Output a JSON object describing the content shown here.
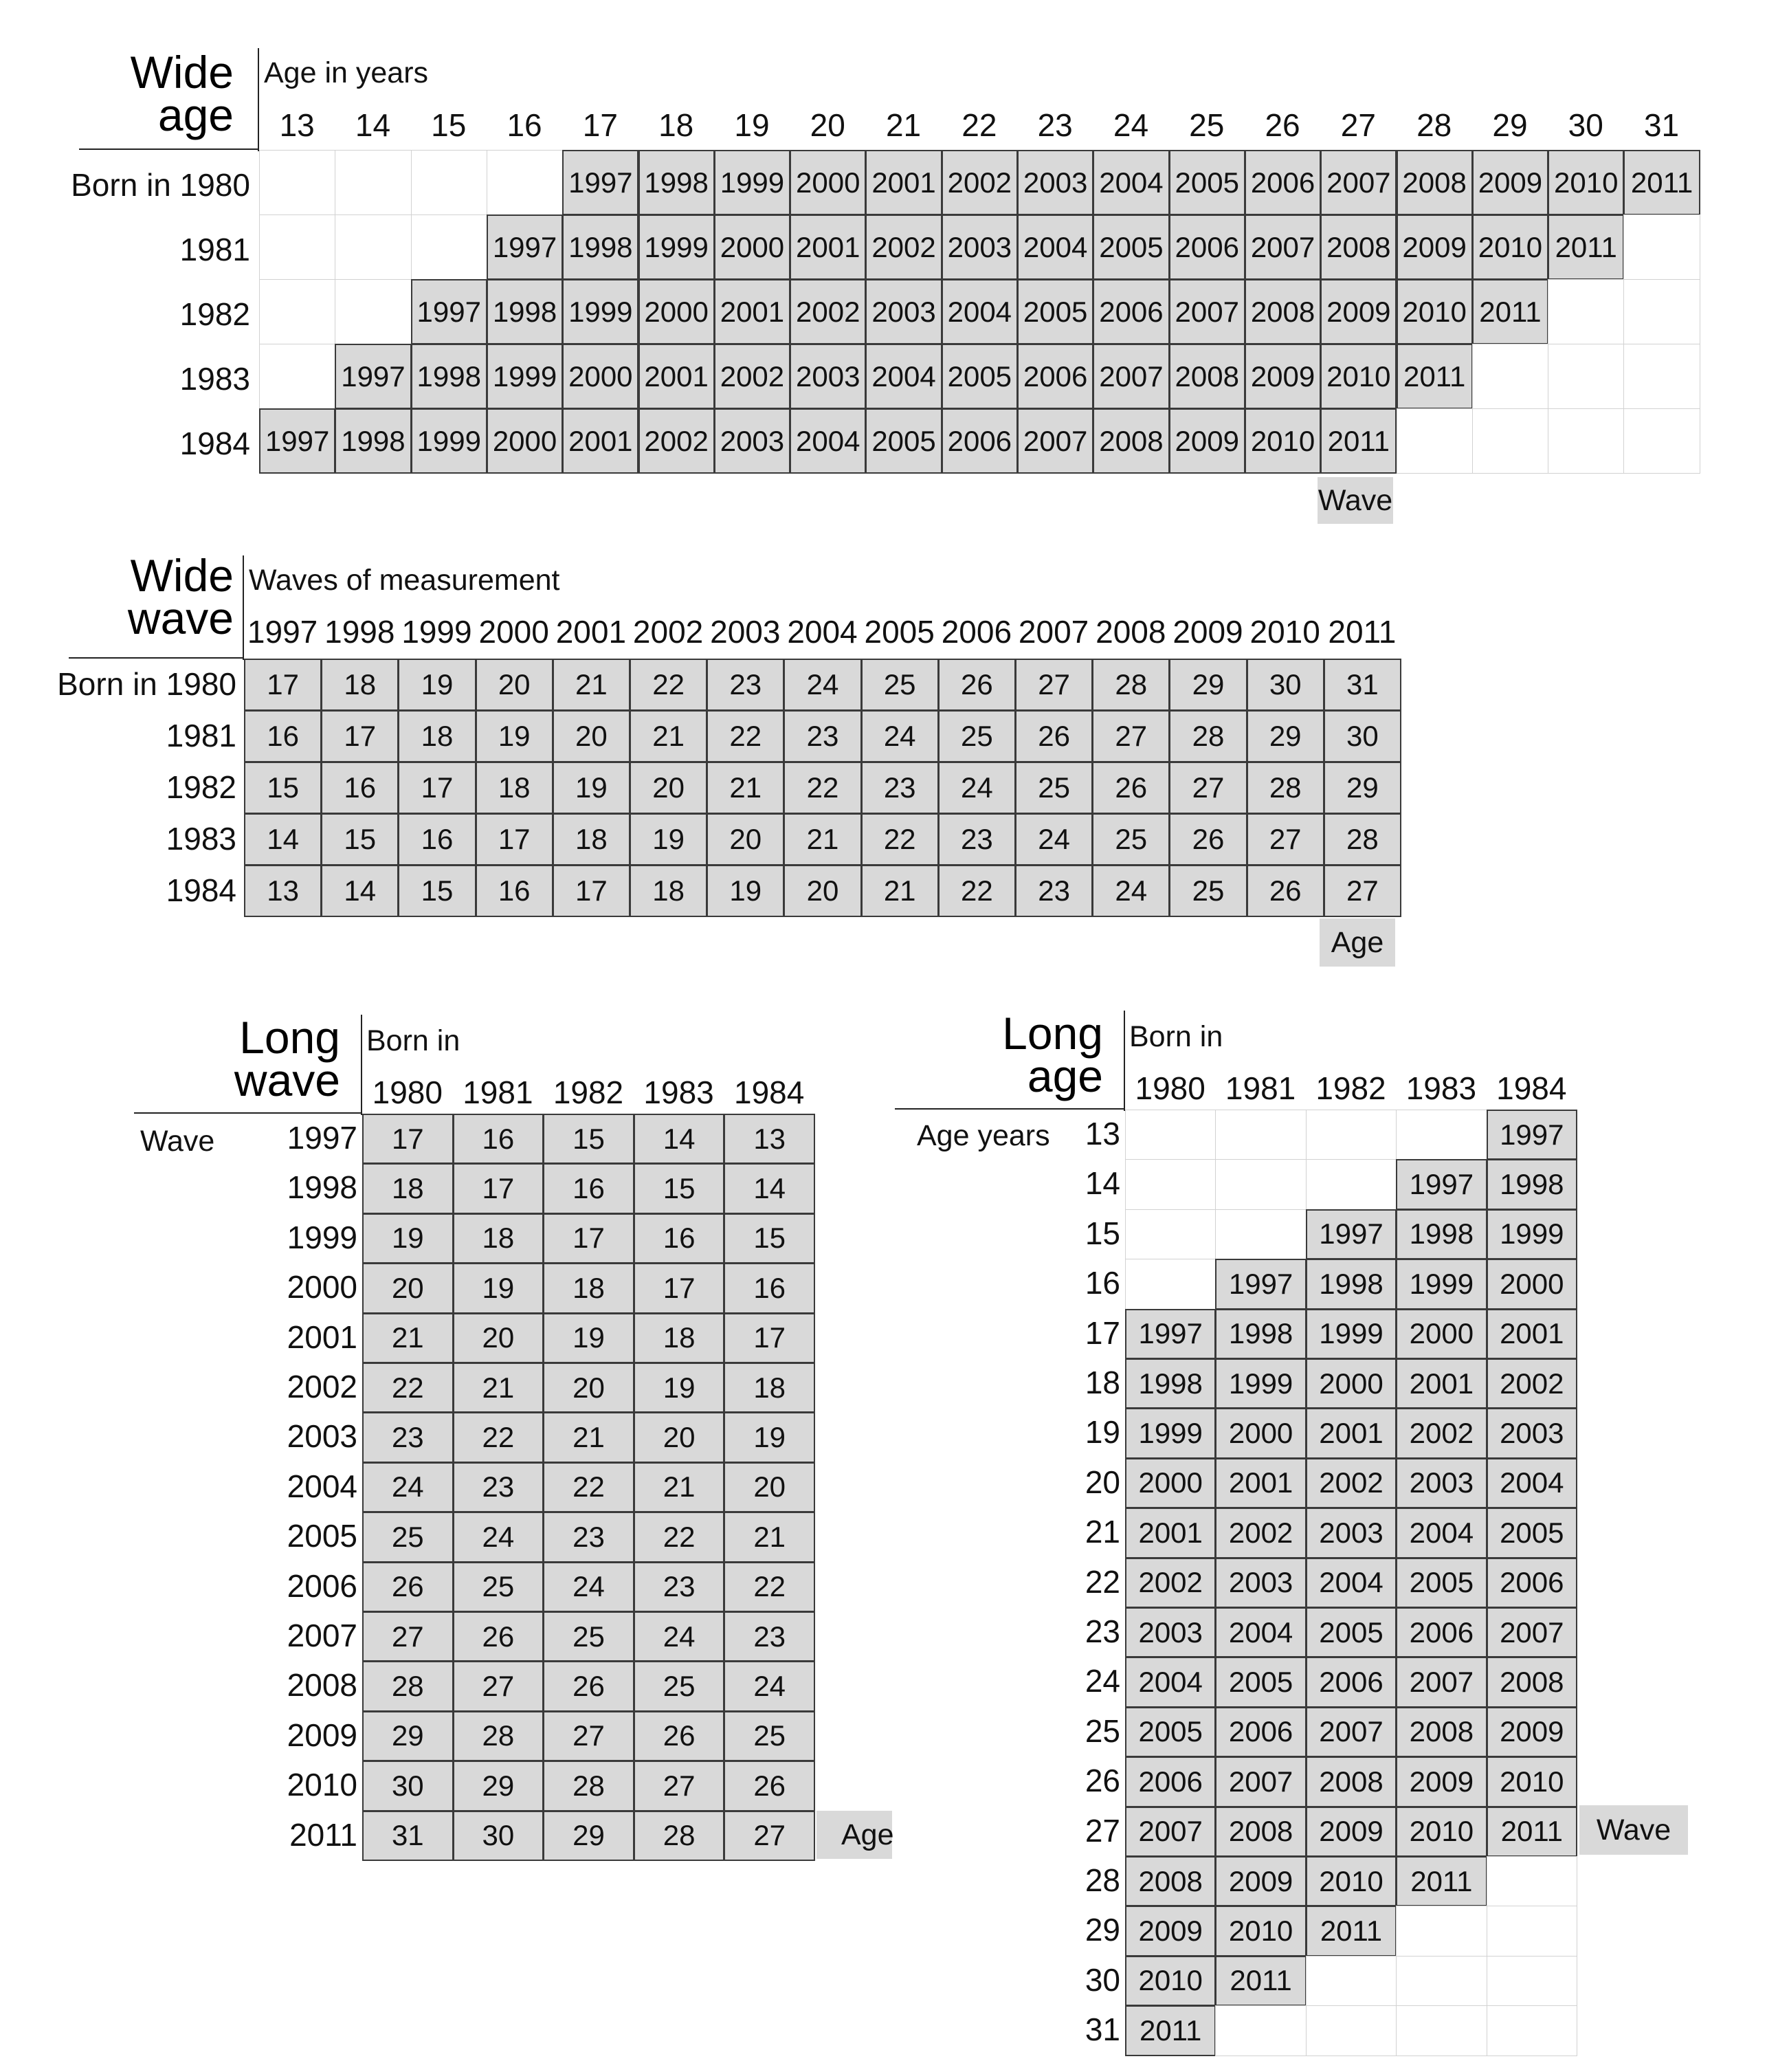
{
  "wide_age": {
    "title_line1": "Wide",
    "title_line2": "age",
    "axis_label": "Age  in years",
    "born_label": "Born in",
    "ages": [
      "13",
      "14",
      "15",
      "16",
      "17",
      "18",
      "19",
      "20",
      "21",
      "22",
      "23",
      "24",
      "25",
      "26",
      "27",
      "28",
      "29",
      "30",
      "31"
    ],
    "cohorts": [
      "1980",
      "1981",
      "1982",
      "1983",
      "1984"
    ],
    "start_age_by_cohort": [
      17,
      16,
      15,
      14,
      13
    ],
    "waves": [
      "1997",
      "1998",
      "1999",
      "2000",
      "2001",
      "2002",
      "2003",
      "2004",
      "2005",
      "2006",
      "2007",
      "2008",
      "2009",
      "2010",
      "2011"
    ],
    "tag": "Wave"
  },
  "wide_wave": {
    "title_line1": "Wide",
    "title_line2": "wave",
    "axis_label": "Waves of measurement",
    "born_label": "Born in",
    "waves": [
      "1997",
      "1998",
      "1999",
      "2000",
      "2001",
      "2002",
      "2003",
      "2004",
      "2005",
      "2006",
      "2007",
      "2008",
      "2009",
      "2010",
      "2011"
    ],
    "cohorts": [
      "1980",
      "1981",
      "1982",
      "1983",
      "1984"
    ],
    "rows": [
      [
        "17",
        "18",
        "19",
        "20",
        "21",
        "22",
        "23",
        "24",
        "25",
        "26",
        "27",
        "28",
        "29",
        "30",
        "31"
      ],
      [
        "16",
        "17",
        "18",
        "19",
        "20",
        "21",
        "22",
        "23",
        "24",
        "25",
        "26",
        "27",
        "28",
        "29",
        "30"
      ],
      [
        "15",
        "16",
        "17",
        "18",
        "19",
        "20",
        "21",
        "22",
        "23",
        "24",
        "25",
        "26",
        "27",
        "28",
        "29"
      ],
      [
        "14",
        "15",
        "16",
        "17",
        "18",
        "19",
        "20",
        "21",
        "22",
        "23",
        "24",
        "25",
        "26",
        "27",
        "28"
      ],
      [
        "13",
        "14",
        "15",
        "16",
        "17",
        "18",
        "19",
        "20",
        "21",
        "22",
        "23",
        "24",
        "25",
        "26",
        "27"
      ]
    ],
    "tag": "Age"
  },
  "long_wave": {
    "title_line1": "Long",
    "title_line2": "wave",
    "axis_label": "Born in",
    "row_axis_label": "Wave:",
    "cohorts": [
      "1980",
      "1981",
      "1982",
      "1983",
      "1984"
    ],
    "waves": [
      "1997",
      "1998",
      "1999",
      "2000",
      "2001",
      "2002",
      "2003",
      "2004",
      "2005",
      "2006",
      "2007",
      "2008",
      "2009",
      "2010",
      "2011"
    ],
    "rows": [
      [
        "17",
        "16",
        "15",
        "14",
        "13"
      ],
      [
        "18",
        "17",
        "16",
        "15",
        "14"
      ],
      [
        "19",
        "18",
        "17",
        "16",
        "15"
      ],
      [
        "20",
        "19",
        "18",
        "17",
        "16"
      ],
      [
        "21",
        "20",
        "19",
        "18",
        "17"
      ],
      [
        "22",
        "21",
        "20",
        "19",
        "18"
      ],
      [
        "23",
        "22",
        "21",
        "20",
        "19"
      ],
      [
        "24",
        "23",
        "22",
        "21",
        "20"
      ],
      [
        "25",
        "24",
        "23",
        "22",
        "21"
      ],
      [
        "26",
        "25",
        "24",
        "23",
        "22"
      ],
      [
        "27",
        "26",
        "25",
        "24",
        "23"
      ],
      [
        "28",
        "27",
        "26",
        "25",
        "24"
      ],
      [
        "29",
        "28",
        "27",
        "26",
        "25"
      ],
      [
        "30",
        "29",
        "28",
        "27",
        "26"
      ],
      [
        "31",
        "30",
        "29",
        "28",
        "27"
      ]
    ],
    "tag": "Age"
  },
  "long_age": {
    "title_line1": "Long",
    "title_line2": "age",
    "axis_label": "Born in",
    "row_axis_label": "Age years",
    "cohorts": [
      "1980",
      "1981",
      "1982",
      "1983",
      "1984"
    ],
    "ages": [
      "13",
      "14",
      "15",
      "16",
      "17",
      "18",
      "19",
      "20",
      "21",
      "22",
      "23",
      "24",
      "25",
      "26",
      "27",
      "28",
      "29",
      "30",
      "31"
    ],
    "start_age_by_cohort": [
      17,
      16,
      15,
      14,
      13
    ],
    "waves": [
      "1997",
      "1998",
      "1999",
      "2000",
      "2001",
      "2002",
      "2003",
      "2004",
      "2005",
      "2006",
      "2007",
      "2008",
      "2009",
      "2010",
      "2011"
    ],
    "tag": "Wave"
  }
}
